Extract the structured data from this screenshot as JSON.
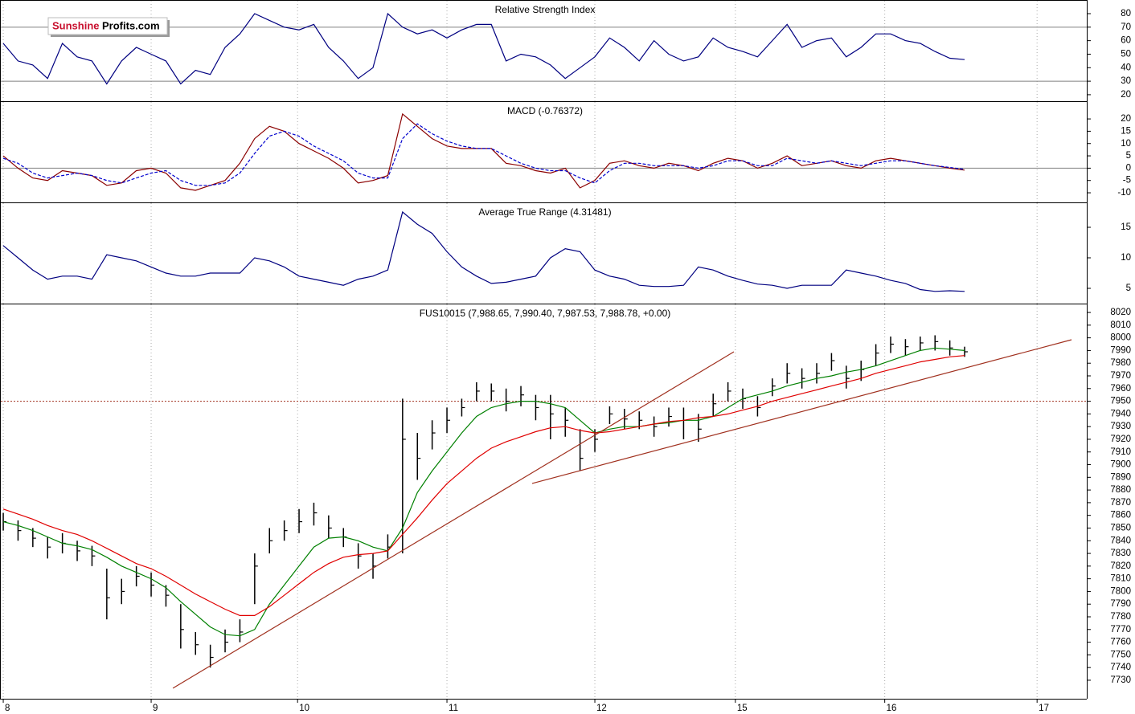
{
  "logo": {
    "part1": "Sunshine",
    "part2": "Profits.com"
  },
  "chart_data": [
    {
      "type": "line",
      "title": "Relative Strength Index",
      "ylim": [
        15.2,
        90.1
      ],
      "yticks": [
        20,
        30,
        40,
        50,
        60,
        70,
        80
      ],
      "hlines": [
        70,
        30
      ],
      "series": [
        {
          "color": "#000080",
          "values": [
            58,
            45,
            42,
            32,
            58,
            48,
            45,
            28,
            45,
            55,
            50,
            45,
            28,
            38,
            35,
            55,
            65,
            80,
            75,
            70,
            68,
            72,
            55,
            45,
            32,
            40,
            80,
            70,
            65,
            68,
            62,
            68,
            72,
            72,
            45,
            50,
            48,
            42,
            32,
            40,
            48,
            62,
            55,
            45,
            60,
            50,
            45,
            48,
            62,
            55,
            52,
            48,
            60,
            72,
            55,
            60,
            62,
            48,
            55,
            65,
            65,
            60,
            58,
            52,
            47,
            46
          ]
        }
      ]
    },
    {
      "type": "line",
      "title": "MACD (-0.76372)",
      "ylim": [
        -13.9,
        27.2
      ],
      "yticks": [
        20,
        15,
        10,
        5,
        0,
        -5,
        -10
      ],
      "hlines": [
        0
      ],
      "series": [
        {
          "color": "#8b0000",
          "values": [
            5,
            0,
            -4,
            -5,
            -1,
            -2,
            -3,
            -7,
            -6,
            -1,
            0,
            -2,
            -8,
            -9,
            -7,
            -5,
            2,
            12,
            17,
            15,
            10,
            7,
            4,
            0,
            -6,
            -5,
            -3,
            22,
            17,
            12,
            9,
            8,
            8,
            8,
            2,
            1,
            -1,
            -2,
            0,
            -8,
            -5,
            2,
            3,
            1,
            0,
            2,
            1,
            -1,
            2,
            4,
            3,
            0,
            2,
            5,
            1,
            2,
            3,
            1,
            0,
            3,
            4,
            3,
            2,
            1,
            0,
            -0.8
          ]
        },
        {
          "color": "#0000cd",
          "dashed": true,
          "values": [
            4,
            2,
            -2,
            -4,
            -3,
            -2,
            -3,
            -5,
            -6,
            -4,
            -2,
            -1,
            -5,
            -7,
            -7,
            -6,
            -2,
            6,
            13,
            15,
            13,
            9,
            6,
            3,
            -2,
            -4,
            -4,
            12,
            18,
            14,
            11,
            9,
            8,
            8,
            5,
            2,
            0,
            -1,
            -1,
            -4,
            -6,
            -1,
            2,
            2,
            1,
            1,
            1,
            0,
            1,
            3,
            3,
            1,
            1,
            4,
            3,
            2,
            3,
            2,
            1,
            2,
            3,
            3,
            2,
            1,
            0.3,
            -0.5
          ]
        }
      ]
    },
    {
      "type": "line",
      "title": "Average True Range (4.31481)",
      "ylim": [
        2.5,
        19.08
      ],
      "yticks": [
        5,
        10,
        15
      ],
      "series": [
        {
          "color": "#000080",
          "values": [
            12,
            10,
            8,
            6.5,
            7,
            7,
            6.5,
            10.5,
            10,
            9.5,
            8.5,
            7.5,
            7,
            7,
            7.5,
            7.5,
            7.5,
            10,
            9.5,
            8.5,
            7,
            6.5,
            6,
            5.5,
            6.5,
            7,
            8,
            17.5,
            15.5,
            14,
            11,
            8.5,
            7,
            5.8,
            6,
            6.5,
            7,
            10,
            11.5,
            11,
            8,
            7,
            6.5,
            5.5,
            5.3,
            5.3,
            5.5,
            8.5,
            8,
            7,
            6.3,
            5.7,
            5.5,
            5,
            5.5,
            5.5,
            5.5,
            8,
            7.5,
            7,
            6.3,
            5.8,
            4.8,
            4.5,
            4.6,
            4.5
          ]
        }
      ]
    },
    {
      "type": "ohlc",
      "title": "FUS10015 (7,988.65, 7,990.40, 7,987.53, 7,988.78, +0.00)",
      "color": "#000000",
      "xlim": [
        -0.022,
        7.326
      ],
      "xticks": [
        {
          "value": 0,
          "label": "8"
        },
        {
          "value": 1,
          "label": "9"
        },
        {
          "value": 1.99,
          "label": "10"
        },
        {
          "value": 3,
          "label": "11"
        },
        {
          "value": 4,
          "label": "12"
        },
        {
          "value": 4.95,
          "label": "15"
        },
        {
          "value": 5.96,
          "label": "16"
        },
        {
          "value": 6.99,
          "label": "17"
        }
      ],
      "ylim": [
        7715.4,
        8027
      ],
      "yticks": [
        7730,
        7740,
        7750,
        7760,
        7770,
        7780,
        7790,
        7800,
        7810,
        7820,
        7830,
        7840,
        7850,
        7860,
        7870,
        7880,
        7890,
        7900,
        7910,
        7920,
        7930,
        7940,
        7950,
        7960,
        7970,
        7980,
        7990,
        8000,
        8010,
        8020
      ],
      "x": [
        0,
        0.1,
        0.2,
        0.3,
        0.4,
        0.5,
        0.6,
        0.7,
        0.8,
        0.9,
        1,
        1.1,
        1.2,
        1.3,
        1.4,
        1.5,
        1.6,
        1.7,
        1.8,
        1.9,
        2,
        2.1,
        2.2,
        2.3,
        2.4,
        2.5,
        2.6,
        2.7,
        2.8,
        2.9,
        3,
        3.1,
        3.2,
        3.3,
        3.4,
        3.5,
        3.6,
        3.7,
        3.8,
        3.9,
        4,
        4.1,
        4.2,
        4.3,
        4.4,
        4.5,
        4.6,
        4.7,
        4.8,
        4.9,
        5,
        5.1,
        5.2,
        5.3,
        5.4,
        5.5,
        5.6,
        5.7,
        5.8,
        5.9,
        6,
        6.1,
        6.2,
        6.3,
        6.4,
        6.5
      ],
      "high": [
        7862,
        7856,
        7850,
        7843,
        7846,
        7840,
        7836,
        7818,
        7810,
        7820,
        7815,
        7805,
        7790,
        7768,
        7758,
        7770,
        7778,
        7830,
        7850,
        7856,
        7865,
        7870,
        7860,
        7850,
        7838,
        7830,
        7845,
        7952,
        7925,
        7935,
        7945,
        7952,
        7965,
        7964,
        7960,
        7962,
        7955,
        7955,
        7945,
        7928,
        7928,
        7946,
        7944,
        7942,
        7938,
        7945,
        7945,
        7940,
        7956,
        7965,
        7960,
        7954,
        7968,
        7980,
        7976,
        7980,
        7988,
        7978,
        7982,
        7995,
        8001,
        7999,
        8001,
        8002,
        7998,
        7993
      ],
      "low": [
        7848,
        7840,
        7835,
        7826,
        7830,
        7824,
        7820,
        7778,
        7790,
        7804,
        7796,
        7788,
        7755,
        7750,
        7740,
        7752,
        7760,
        7790,
        7830,
        7840,
        7846,
        7852,
        7842,
        7835,
        7818,
        7810,
        7826,
        7830,
        7888,
        7912,
        7925,
        7938,
        7950,
        7950,
        7942,
        7946,
        7935,
        7920,
        7922,
        7895,
        7910,
        7932,
        7928,
        7928,
        7922,
        7930,
        7920,
        7918,
        7938,
        7950,
        7944,
        7938,
        7954,
        7964,
        7960,
        7964,
        7974,
        7960,
        7966,
        7978,
        7988,
        7986,
        7990,
        7990,
        7986,
        7985
      ],
      "close": [
        7855,
        7848,
        7842,
        7835,
        7838,
        7832,
        7828,
        7795,
        7800,
        7812,
        7805,
        7797,
        7770,
        7758,
        7748,
        7760,
        7768,
        7820,
        7840,
        7848,
        7855,
        7862,
        7850,
        7843,
        7828,
        7820,
        7835,
        7920,
        7905,
        7925,
        7935,
        7945,
        7958,
        7958,
        7950,
        7955,
        7945,
        7940,
        7935,
        7905,
        7920,
        7940,
        7936,
        7935,
        7930,
        7938,
        7935,
        7928,
        7948,
        7958,
        7952,
        7945,
        7962,
        7972,
        7968,
        7972,
        7982,
        7968,
        7975,
        7988,
        7995,
        7993,
        7996,
        7997,
        7992,
        7989
      ],
      "series": [
        {
          "color": "#008000",
          "values": [
            7855,
            7852,
            7848,
            7843,
            7838,
            7836,
            7833,
            7827,
            7820,
            7815,
            7810,
            7803,
            7792,
            7782,
            7772,
            7766,
            7765,
            7770,
            7790,
            7805,
            7820,
            7835,
            7842,
            7843,
            7840,
            7835,
            7832,
            7850,
            7878,
            7895,
            7910,
            7925,
            7938,
            7945,
            7948,
            7950,
            7950,
            7948,
            7945,
            7935,
            7925,
            7928,
            7930,
            7930,
            7932,
            7933,
            7935,
            7935,
            7938,
            7945,
            7952,
            7955,
            7958,
            7962,
            7965,
            7968,
            7970,
            7973,
            7975,
            7978,
            7982,
            7986,
            7990,
            7992,
            7991,
            7990
          ]
        },
        {
          "color": "#e00000",
          "values": [
            7865,
            7861,
            7857,
            7852,
            7848,
            7845,
            7840,
            7834,
            7828,
            7822,
            7818,
            7812,
            7805,
            7798,
            7792,
            7786,
            7781,
            7781,
            7788,
            7797,
            7806,
            7815,
            7822,
            7827,
            7829,
            7830,
            7832,
            7845,
            7858,
            7872,
            7885,
            7895,
            7905,
            7913,
            7918,
            7922,
            7926,
            7929,
            7930,
            7927,
            7925,
            7926,
            7928,
            7930,
            7932,
            7934,
            7935,
            7937,
            7938,
            7940,
            7943,
            7946,
            7950,
            7953,
            7956,
            7959,
            7962,
            7965,
            7968,
            7972,
            7975,
            7978,
            7981,
            7983,
            7985,
            7986
          ]
        }
      ],
      "trendlines": [
        {
          "color": "#a0301e",
          "x": [
            1.147,
            4.94
          ],
          "y": [
            7723.7,
            7989
          ]
        },
        {
          "color": "#a0301e",
          "x": [
            3.576,
            7.223
          ],
          "y": [
            7885.2,
            7998.5
          ]
        }
      ],
      "hlines": [
        {
          "value": 7950,
          "color": "#a0301e",
          "dotted": true
        }
      ]
    }
  ]
}
